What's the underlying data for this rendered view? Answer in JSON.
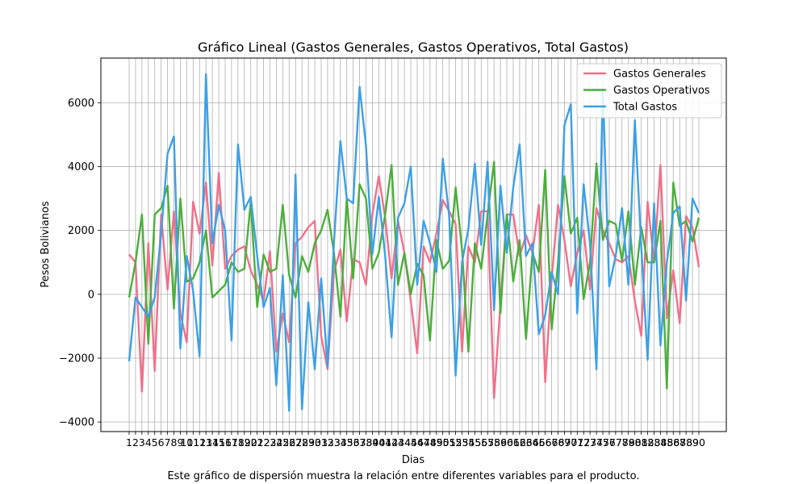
{
  "chart_data": {
    "type": "line",
    "title": "Gráfico Lineal (Gastos Generales, Gastos Operativos, Total Gastos)",
    "xlabel": "Dias",
    "ylabel": "Pesos Bolivianos",
    "ylim": [
      -4300,
      7400
    ],
    "yticks": [
      -4000,
      -2000,
      0,
      2000,
      4000,
      6000
    ],
    "ytick_labels": [
      "−4000",
      "−2000",
      "0",
      "2000",
      "4000",
      "6000"
    ],
    "x": [
      1,
      2,
      3,
      4,
      5,
      6,
      7,
      8,
      9,
      10,
      11,
      12,
      13,
      14,
      15,
      16,
      17,
      18,
      19,
      20,
      21,
      22,
      23,
      24,
      25,
      26,
      27,
      28,
      29,
      30,
      31,
      32,
      33,
      34,
      35,
      36,
      37,
      38,
      39,
      40,
      41,
      42,
      43,
      44,
      45,
      46,
      47,
      48,
      49,
      50,
      51,
      52,
      53,
      54,
      55,
      56,
      57,
      58,
      59,
      60,
      61,
      62,
      63,
      64,
      65,
      66,
      67,
      68,
      69,
      70,
      71,
      72,
      73,
      74,
      75,
      76,
      77,
      78,
      79,
      80,
      81,
      82,
      83,
      84,
      85,
      86,
      87,
      88,
      89,
      90
    ],
    "xtick_labels": [
      "1",
      "2",
      "3",
      "4",
      "5",
      "6",
      "7",
      "8",
      "9",
      "10",
      "11",
      "12",
      "13",
      "14",
      "15",
      "16",
      "17",
      "18",
      "19",
      "20",
      "21",
      "22",
      "23",
      "24",
      "25",
      "26",
      "27",
      "28",
      "29",
      "30",
      "31",
      "32",
      "33",
      "34",
      "35",
      "36",
      "37",
      "38",
      "39",
      "40",
      "41",
      "42",
      "43",
      "44",
      "45",
      "46",
      "47",
      "48",
      "49",
      "50",
      "51",
      "52",
      "53",
      "54",
      "55",
      "56",
      "57",
      "58",
      "59",
      "60",
      "61",
      "62",
      "63",
      "64",
      "65",
      "66",
      "67",
      "68",
      "69",
      "70",
      "71",
      "72",
      "73",
      "74",
      "75",
      "76",
      "77",
      "78",
      "79",
      "80",
      "81",
      "82",
      "83",
      "84",
      "85",
      "86",
      "87",
      "88",
      "89",
      "90"
    ],
    "grid": true,
    "legend_position": "top-right",
    "series": [
      {
        "name": "Gastos Generales",
        "color": "#f0708a",
        "values": [
          1250,
          1000,
          -3050,
          1600,
          -2400,
          2500,
          150,
          2600,
          -600,
          -1500,
          2900,
          1900,
          3500,
          900,
          3800,
          800,
          1200,
          1400,
          1500,
          750,
          300,
          -200,
          1350,
          -1800,
          -600,
          -1500,
          1600,
          1800,
          2100,
          2300,
          -1300,
          -2350,
          700,
          1400,
          -850,
          1100,
          1000,
          300,
          2500,
          3700,
          2400,
          500,
          2300,
          1300,
          -200,
          -1850,
          1500,
          1000,
          1900,
          2950,
          2600,
          2200,
          -1800,
          1500,
          1000,
          2600,
          2600,
          -3250,
          -300,
          2500,
          2500,
          1200,
          1850,
          1300,
          2800,
          -2750,
          500,
          2800,
          1700,
          250,
          1300,
          2000,
          150,
          2700,
          2000,
          1600,
          1100,
          1000,
          1200,
          -200,
          -1300,
          2900,
          1000,
          4050,
          -750,
          750,
          -900,
          2450,
          2100,
          850
        ],
        "lineWidth": 2.4
      },
      {
        "name": "Gastos Operativos",
        "color": "#4cae3c",
        "values": [
          -100,
          1000,
          2500,
          -1550,
          2500,
          2700,
          3400,
          -450,
          3000,
          400,
          500,
          1000,
          2000,
          -100,
          100,
          300,
          1000,
          700,
          800,
          2900,
          -400,
          1250,
          700,
          800,
          2800,
          600,
          -100,
          1200,
          700,
          1600,
          2000,
          2650,
          1300,
          -700,
          3000,
          500,
          3450,
          3000,
          800,
          1300,
          2500,
          4050,
          300,
          1300,
          0,
          950,
          600,
          -1450,
          1700,
          800,
          1050,
          3350,
          1400,
          -1800,
          1600,
          800,
          2500,
          4150,
          -600,
          2500,
          400,
          1700,
          -1400,
          1300,
          700,
          3900,
          -1100,
          1000,
          3700,
          1900,
          2400,
          -150,
          1000,
          4100,
          1700,
          2300,
          2200,
          1050,
          2600,
          300,
          2100,
          1000,
          1000,
          2300,
          -2950,
          3500,
          2150,
          2300,
          1650,
          2400
        ],
        "lineWidth": 2.4
      },
      {
        "name": "Total Gastos",
        "color": "#3ca0e6",
        "values": [
          -2100,
          -100,
          -400,
          -700,
          -100,
          1900,
          4400,
          4950,
          -1700,
          1200,
          100,
          -1950,
          6900,
          1600,
          2800,
          2000,
          -1450,
          4700,
          2650,
          3050,
          1200,
          -400,
          200,
          -2850,
          600,
          -3650,
          3750,
          -3600,
          -250,
          -2350,
          500,
          -2250,
          1600,
          4800,
          3000,
          2850,
          6500,
          4650,
          1250,
          3050,
          1200,
          -1350,
          2400,
          2850,
          4000,
          300,
          2300,
          1600,
          700,
          4250,
          2450,
          -2550,
          1000,
          2050,
          4100,
          1550,
          4150,
          -500,
          3400,
          1300,
          3350,
          4700,
          1200,
          1600,
          -1250,
          -650,
          700,
          0,
          5300,
          5950,
          -600,
          3450,
          1600,
          -2350,
          6450,
          250,
          1200,
          2700,
          300,
          5450,
          1500,
          -2050,
          2850,
          -1600,
          1000,
          2550,
          2750,
          -200,
          3000,
          2550
        ],
        "lineWidth": 2.4
      }
    ],
    "caption": "Este gráfico de dispersión muestra la relación entre diferentes variables para el producto."
  }
}
